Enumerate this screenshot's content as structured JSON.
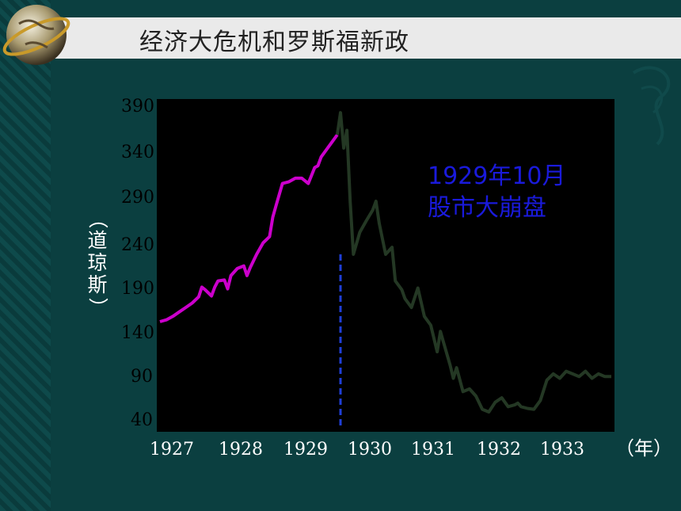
{
  "header": {
    "title": "经济大危机和罗斯福新政"
  },
  "chart_data": {
    "type": "line",
    "title": "",
    "xlabel": "（年）",
    "ylabel": "（道琼斯）",
    "x_ticks": [
      "1927",
      "1928",
      "1929",
      "1930",
      "1931",
      "1932",
      "1933"
    ],
    "y_ticks": [
      "390",
      "340",
      "290",
      "240",
      "190",
      "140",
      "90",
      "40"
    ],
    "ylim": [
      25,
      390
    ],
    "xlim": [
      1927.0,
      1934.0
    ],
    "annotation": {
      "lines": [
        "1929年10月",
        "股市大崩盘"
      ],
      "x": 1929.8
    },
    "series": [
      {
        "name": "",
        "color": "#cc00cc",
        "x": [
          1927.0,
          1927.1,
          1927.2,
          1927.3,
          1927.4,
          1927.5,
          1927.6,
          1927.65,
          1927.7,
          1927.8,
          1927.85,
          1927.9,
          1928.0,
          1928.05,
          1928.1,
          1928.2,
          1928.3,
          1928.35,
          1928.4,
          1928.5,
          1928.6,
          1928.7,
          1928.75,
          1928.8,
          1928.9,
          1929.0,
          1929.1,
          1929.2,
          1929.3,
          1929.4,
          1929.45,
          1929.5,
          1929.6,
          1929.7,
          1929.75
        ],
        "y": [
          144,
          146,
          150,
          155,
          160,
          165,
          172,
          183,
          180,
          173,
          183,
          190,
          191,
          181,
          196,
          204,
          207,
          196,
          205,
          220,
          233,
          240,
          262,
          275,
          300,
          302,
          306,
          306,
          300,
          318,
          320,
          330,
          340,
          350,
          355
        ]
      },
      {
        "name": "",
        "color": "#243824",
        "x": [
          1929.75,
          1929.8,
          1929.85,
          1929.9,
          1929.95,
          1930.0,
          1930.1,
          1930.2,
          1930.3,
          1930.35,
          1930.4,
          1930.5,
          1930.6,
          1930.65,
          1930.75,
          1930.8,
          1930.9,
          1931.0,
          1931.1,
          1931.2,
          1931.3,
          1931.35,
          1931.4,
          1931.5,
          1931.55,
          1931.6,
          1931.7,
          1931.8,
          1931.9,
          1932.0,
          1932.1,
          1932.2,
          1932.3,
          1932.4,
          1932.5,
          1932.55,
          1932.6,
          1932.7,
          1932.8,
          1932.9,
          1933.0,
          1933.1,
          1933.2,
          1933.3,
          1933.4,
          1933.5,
          1933.6,
          1933.7,
          1933.8,
          1933.9,
          1934.0
        ],
        "y": [
          355,
          380,
          340,
          360,
          280,
          220,
          245,
          258,
          270,
          280,
          255,
          220,
          228,
          190,
          180,
          170,
          160,
          182,
          150,
          140,
          110,
          133,
          120,
          95,
          80,
          92,
          65,
          68,
          60,
          45,
          42,
          53,
          58,
          48,
          50,
          52,
          48,
          46,
          45,
          55,
          78,
          85,
          80,
          88,
          85,
          82,
          88,
          80,
          85,
          82,
          82
        ]
      }
    ]
  }
}
